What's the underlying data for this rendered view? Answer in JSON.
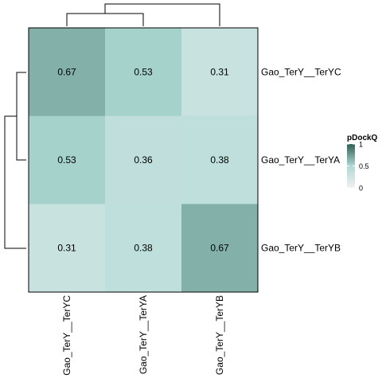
{
  "chart_data": {
    "type": "heatmap",
    "title": "",
    "rows": [
      "Gao_TerY__TerYC",
      "Gao_TerY__TerYA",
      "Gao_TerY__TerYB"
    ],
    "columns": [
      "Gao_TerY__TerYC",
      "Gao_TerY__TerYA",
      "Gao_TerY__TerYB"
    ],
    "values": [
      [
        0.67,
        0.53,
        0.31
      ],
      [
        0.53,
        0.36,
        0.38
      ],
      [
        0.31,
        0.38,
        0.67
      ]
    ],
    "value_labels": [
      [
        "0.67",
        "0.53",
        "0.31"
      ],
      [
        "0.53",
        "0.36",
        "0.38"
      ],
      [
        "0.31",
        "0.38",
        "0.67"
      ]
    ],
    "legend": {
      "title": "pDockQ",
      "ticks": [
        {
          "value": 1,
          "label": "1"
        },
        {
          "value": 0.5,
          "label": "0.5"
        },
        {
          "value": 0,
          "label": "0"
        }
      ],
      "range": [
        0,
        1
      ],
      "placement": "right"
    },
    "color_scale": {
      "low": "#f0f0f0",
      "mid": "#aed9d4",
      "high": "#2f5f52"
    },
    "dendrograms": {
      "row": "left",
      "column": "top"
    },
    "grid": false
  }
}
